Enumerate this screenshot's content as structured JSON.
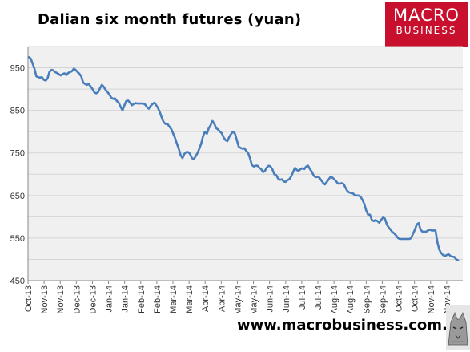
{
  "chart_data": {
    "type": "line",
    "title": "Dalian six month futures (yuan)",
    "xlabel": "",
    "ylabel": "",
    "ylim": [
      450,
      1000
    ],
    "yticks": [
      450,
      550,
      650,
      750,
      850,
      950
    ],
    "xtick_labels": [
      "Oct-13",
      "Nov-13",
      "Nov-13",
      "Dec-13",
      "Dec-13",
      "Jan-14",
      "Jan-14",
      "Feb-14",
      "Feb-14",
      "Mar-14",
      "Mar-14",
      "Apr-14",
      "Apr-14",
      "May-14",
      "May-14",
      "Jun-14",
      "Jun-14",
      "Jul-14",
      "Jul-14",
      "Aug-14",
      "Aug-14",
      "Sep-14",
      "Sep-14",
      "Oct-14",
      "Oct-14",
      "Nov-14",
      "Nov-14"
    ],
    "grid": "horizontal",
    "line_color": "#4a7ebb",
    "series": [
      {
        "values": [
          975,
          972,
          960,
          948,
          930,
          928,
          927,
          928,
          922,
          920,
          925,
          940,
          945,
          944,
          940,
          938,
          935,
          932,
          935,
          937,
          933,
          938,
          940,
          942,
          948,
          945,
          940,
          936,
          930,
          915,
          912,
          910,
          912,
          906,
          900,
          892,
          890,
          893,
          902,
          910,
          905,
          898,
          893,
          887,
          880,
          877,
          878,
          872,
          868,
          858,
          850,
          862,
          872,
          873,
          868,
          862,
          865,
          867,
          866,
          866,
          866,
          866,
          864,
          858,
          854,
          860,
          865,
          868,
          862,
          855,
          845,
          832,
          822,
          818,
          818,
          812,
          806,
          796,
          785,
          772,
          760,
          745,
          738,
          748,
          752,
          752,
          748,
          738,
          735,
          742,
          750,
          760,
          772,
          790,
          800,
          795,
          808,
          815,
          825,
          818,
          808,
          805,
          800,
          796,
          786,
          780,
          778,
          788,
          795,
          800,
          795,
          780,
          765,
          762,
          760,
          761,
          755,
          750,
          738,
          722,
          718,
          720,
          720,
          715,
          712,
          705,
          708,
          716,
          720,
          718,
          711,
          700,
          698,
          690,
          687,
          688,
          683,
          682,
          686,
          688,
          695,
          705,
          715,
          710,
          708,
          712,
          714,
          712,
          718,
          720,
          712,
          706,
          697,
          693,
          694,
          692,
          686,
          680,
          676,
          682,
          688,
          694,
          692,
          688,
          683,
          678,
          678,
          679,
          677,
          668,
          660,
          657,
          656,
          655,
          650,
          650,
          650,
          647,
          640,
          630,
          615,
          605,
          605,
          593,
          590,
          592,
          590,
          586,
          593,
          598,
          596,
          582,
          575,
          570,
          564,
          561,
          556,
          550,
          548,
          548,
          548,
          548,
          548,
          548,
          550,
          560,
          570,
          582,
          585,
          570,
          565,
          565,
          565,
          568,
          570,
          568,
          568,
          568,
          540,
          523,
          515,
          510,
          508,
          510,
          512,
          508,
          506,
          506,
          500,
          498
        ]
      }
    ]
  },
  "logo": {
    "line1": "MACRO",
    "line2": "BUSINESS",
    "bg_color": "#c8102e"
  },
  "footer": {
    "url": "www.macrobusiness.com.au"
  }
}
